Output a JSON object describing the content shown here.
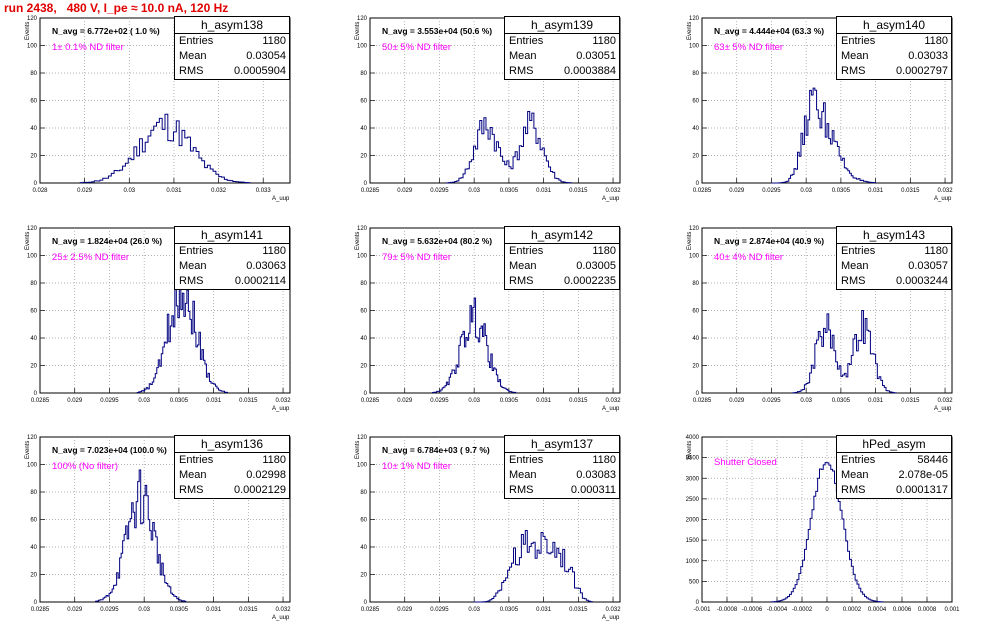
{
  "page_title": "run 2438,   480 V, I_pe ≈ 10.0 nA, 120 Hz",
  "chart_data": [
    {
      "type": "histogram",
      "name": "h_asym138",
      "entries": "1180",
      "mean": "0.03054",
      "rms": "0.0005904",
      "navg": "N_avg = 6.772e+02 ( 1.0 %)",
      "filter": "1± 0.1% ND filter",
      "xlabel": "A_uup",
      "ylabel": "Events",
      "xlim": [
        0.028,
        0.0336
      ],
      "ylim": [
        0,
        120
      ],
      "xticks": [
        "0.028",
        "0.029",
        "0.03",
        "0.031",
        "0.032",
        "0.033"
      ],
      "yticks": [
        "0",
        "20",
        "40",
        "60",
        "80",
        "100",
        "120"
      ],
      "bin_edges": [
        0.0289,
        0.0327
      ],
      "vmax": 50
    },
    {
      "type": "histogram",
      "name": "h_asym139",
      "entries": "1180",
      "mean": "0.03051",
      "rms": "0.0003884",
      "navg": "N_avg = 3.553e+04 (50.6 %)",
      "filter": "50± 5% ND filter",
      "xlabel": "A_uup",
      "ylabel": "Events",
      "xlim": [
        0.0285,
        0.0321
      ],
      "ylim": [
        0,
        120
      ],
      "xticks": [
        "0.0285",
        "0.029",
        "0.0295",
        "0.03",
        "0.0305",
        "0.031",
        "0.0315",
        "0.032"
      ],
      "yticks": [
        "0",
        "20",
        "40",
        "60",
        "80",
        "100",
        "120"
      ],
      "bin_edges": [
        0.0296,
        0.0314
      ],
      "vmax": 52
    },
    {
      "type": "histogram",
      "name": "h_asym140",
      "entries": "1180",
      "mean": "0.03033",
      "rms": "0.0002797",
      "navg": "N_avg = 4.444e+04 (63.3 %)",
      "filter": "63± 5% ND filter",
      "xlabel": "A_uup",
      "ylabel": "Events",
      "xlim": [
        0.0285,
        0.0321
      ],
      "ylim": [
        0,
        120
      ],
      "xticks": [
        "0.0285",
        "0.029",
        "0.0295",
        "0.03",
        "0.0305",
        "0.031",
        "0.0315",
        "0.032"
      ],
      "yticks": [
        "0",
        "20",
        "40",
        "60",
        "80",
        "100",
        "120"
      ],
      "bin_edges": [
        0.0295,
        0.031
      ],
      "vmax": 69
    },
    {
      "type": "histogram",
      "name": "h_asym141",
      "entries": "1180",
      "mean": "0.03063",
      "rms": "0.0002114",
      "navg": "N_avg = 1.824e+04 (26.0 %)",
      "filter": "25± 2.5% ND filter",
      "xlabel": "A_uup",
      "ylabel": "Events",
      "xlim": [
        0.0285,
        0.0321
      ],
      "ylim": [
        0,
        120
      ],
      "xticks": [
        "0.0285",
        "0.029",
        "0.0295",
        "0.03",
        "0.0305",
        "0.031",
        "0.0315",
        "0.032"
      ],
      "yticks": [
        "0",
        "20",
        "40",
        "60",
        "80",
        "100",
        "120"
      ],
      "bin_edges": [
        0.0299,
        0.0312
      ],
      "vmax": 85
    },
    {
      "type": "histogram",
      "name": "h_asym142",
      "entries": "1180",
      "mean": "0.03005",
      "rms": "0.0002235",
      "navg": "N_avg = 5.632e+04 (80.2 %)",
      "filter": "79± 5% ND filter",
      "xlabel": "A_uup",
      "ylabel": "Events",
      "xlim": [
        0.0285,
        0.0321
      ],
      "ylim": [
        0,
        120
      ],
      "xticks": [
        "0.0285",
        "0.029",
        "0.0295",
        "0.03",
        "0.0305",
        "0.031",
        "0.0315",
        "0.032"
      ],
      "yticks": [
        "0",
        "20",
        "40",
        "60",
        "80",
        "100",
        "120"
      ],
      "bin_edges": [
        0.0294,
        0.0306
      ],
      "vmax": 69
    },
    {
      "type": "histogram",
      "name": "h_asym143",
      "entries": "1180",
      "mean": "0.03057",
      "rms": "0.0003244",
      "navg": "N_avg = 2.874e+04 (40.9 %)",
      "filter": "40± 4% ND filter",
      "xlabel": "A_uup",
      "ylabel": "Events",
      "xlim": [
        0.0285,
        0.0321
      ],
      "ylim": [
        0,
        120
      ],
      "xticks": [
        "0.0285",
        "0.029",
        "0.0295",
        "0.03",
        "0.0305",
        "0.031",
        "0.0315",
        "0.032"
      ],
      "yticks": [
        "0",
        "20",
        "40",
        "60",
        "80",
        "100",
        "120"
      ],
      "bin_edges": [
        0.0298,
        0.0313
      ],
      "vmax": 60
    },
    {
      "type": "histogram",
      "name": "h_asym136",
      "entries": "1180",
      "mean": "0.02998",
      "rms": "0.0002129",
      "navg": "N_avg = 7.023e+04 (100.0 %)",
      "filter": "100% (No filter)",
      "xlabel": "A_uup",
      "ylabel": "Events",
      "xlim": [
        0.0285,
        0.0321
      ],
      "ylim": [
        0,
        120
      ],
      "xticks": [
        "0.0285",
        "0.029",
        "0.0295",
        "0.03",
        "0.0305",
        "0.031",
        "0.0315",
        "0.032"
      ],
      "yticks": [
        "0",
        "20",
        "40",
        "60",
        "80",
        "100",
        "120"
      ],
      "bin_edges": [
        0.0293,
        0.0306
      ],
      "vmax": 96
    },
    {
      "type": "histogram",
      "name": "h_asym137",
      "entries": "1180",
      "mean": "0.03083",
      "rms": "0.000311",
      "navg": "N_avg = 6.784e+03 ( 9.7 %)",
      "filter": "10± 1% ND filter",
      "xlabel": "A_uup",
      "ylabel": "Events",
      "xlim": [
        0.0285,
        0.0321
      ],
      "ylim": [
        0,
        120
      ],
      "xticks": [
        "0.0285",
        "0.029",
        "0.0295",
        "0.03",
        "0.0305",
        "0.031",
        "0.0315",
        "0.032"
      ],
      "yticks": [
        "0",
        "20",
        "40",
        "60",
        "80",
        "100",
        "120"
      ],
      "bin_edges": [
        0.03,
        0.0317
      ],
      "vmax": 52
    },
    {
      "type": "histogram",
      "name": "hPed_asym",
      "entries": "58446",
      "mean": "2.078e-05",
      "rms": "0.0001317",
      "navg": "",
      "filter": "Shutter Closed",
      "xlabel": "",
      "ylabel": "Events",
      "xlim": [
        -0.001,
        0.001
      ],
      "ylim": [
        0,
        4000
      ],
      "xticks": [
        "-0.001",
        "-0.0008",
        "-0.0006",
        "-0.0004",
        "-0.0002",
        "0",
        "0.0002",
        "0.0004",
        "0.0006",
        "0.0008",
        "0.001"
      ],
      "yticks": [
        "0",
        "500",
        "1000",
        "1500",
        "2000",
        "2500",
        "3000",
        "3500",
        "4000"
      ],
      "bin_edges": [
        -0.00045,
        0.00045
      ],
      "vmax": 3380
    }
  ]
}
